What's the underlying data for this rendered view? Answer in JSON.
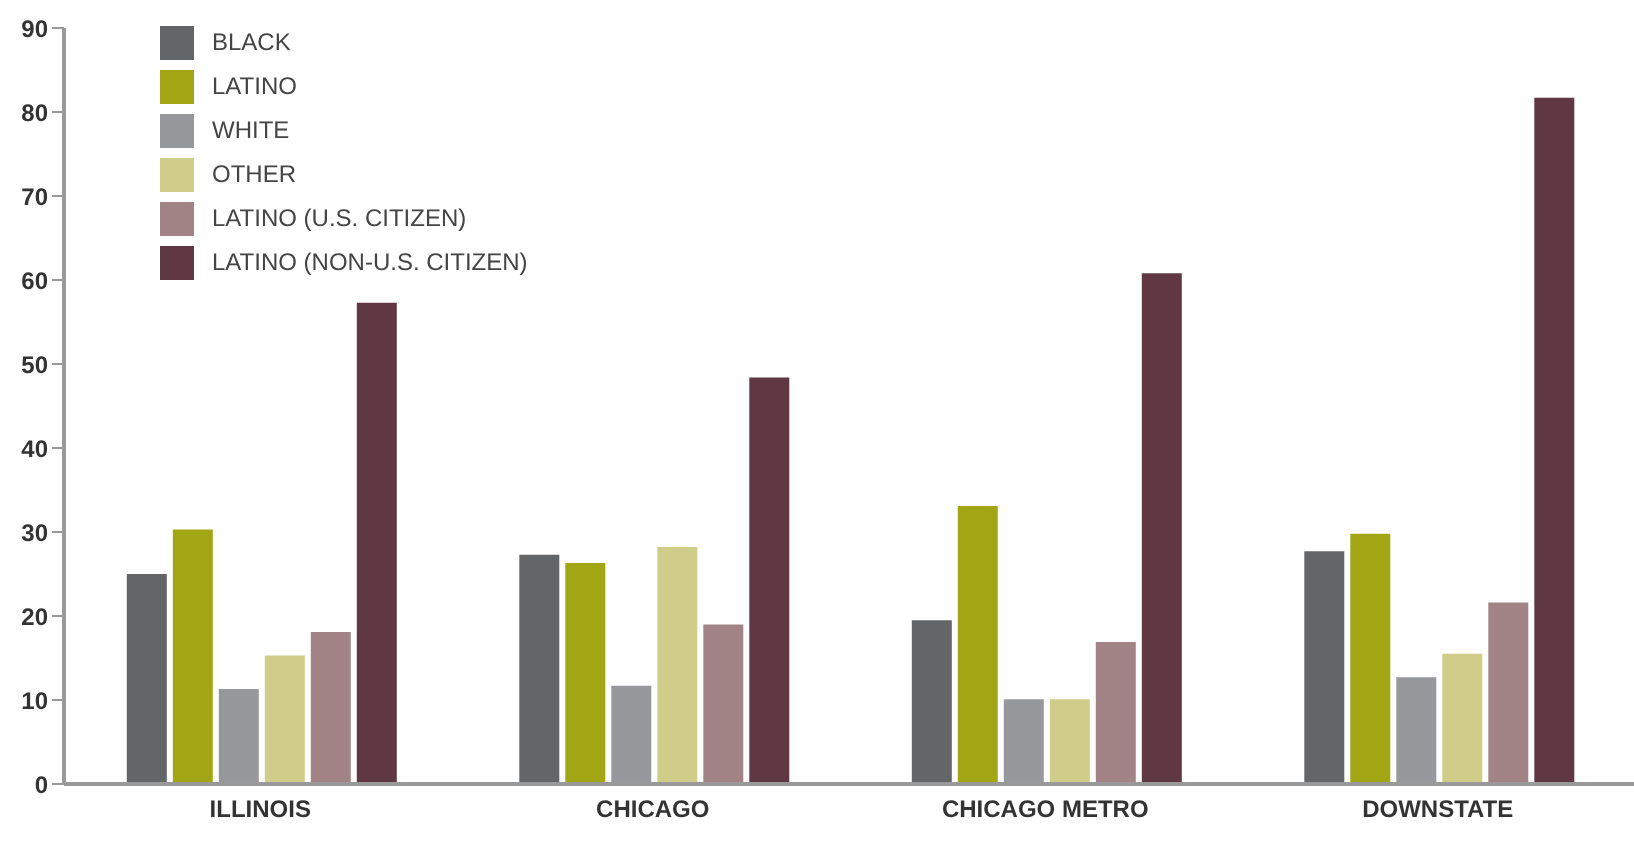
{
  "chart_data": {
    "type": "bar",
    "categories": [
      "ILLINOIS",
      "CHICAGO",
      "CHICAGO METRO",
      "DOWNSTATE"
    ],
    "series": [
      {
        "name": "BLACK",
        "color": "#646567",
        "values": [
          25,
          27.3,
          19.5,
          27.7
        ]
      },
      {
        "name": "LATINO",
        "color": "#a3a614",
        "values": [
          30.3,
          26.3,
          33.1,
          29.8
        ]
      },
      {
        "name": "WHITE",
        "color": "#97989b",
        "values": [
          11.3,
          11.7,
          10.1,
          12.7
        ]
      },
      {
        "name": "OTHER",
        "color": "#cfcd89",
        "values": [
          15.3,
          28.2,
          10.1,
          15.5
        ]
      },
      {
        "name": "LATINO (U.S. CITIZEN)",
        "color": "#a38486",
        "values": [
          18.1,
          19,
          16.9,
          21.6
        ]
      },
      {
        "name": "LATINO (NON-U.S. CITIZEN)",
        "color": "#603844",
        "values": [
          57.3,
          48.4,
          60.8,
          81.7
        ]
      }
    ],
    "ylim": [
      0,
      90
    ],
    "yticks": [
      0,
      10,
      20,
      30,
      40,
      50,
      60,
      70,
      80,
      90
    ],
    "grid": false,
    "legend": "top left"
  }
}
